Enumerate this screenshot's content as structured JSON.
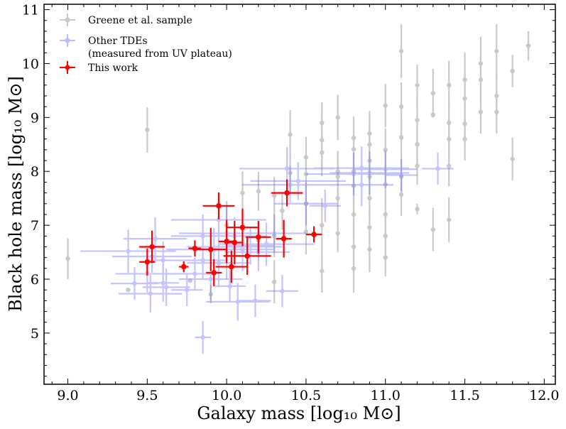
{
  "chart_data": {
    "type": "scatter",
    "title": "",
    "xlabel": "Galaxy mass [log₁₀ M⊙]",
    "ylabel": "Black hole mass [log₁₀ M⊙]",
    "xlim": [
      8.85,
      12.07
    ],
    "ylim": [
      4.05,
      11.1
    ],
    "xticks": [
      9.0,
      9.5,
      10.0,
      10.5,
      11.0,
      11.5,
      12.0
    ],
    "xtick_labels": [
      "9.0",
      "9.5",
      "10.0",
      "10.5",
      "11.0",
      "11.5",
      "12.0"
    ],
    "yticks": [
      5,
      6,
      7,
      8,
      9,
      10,
      11
    ],
    "ytick_labels": [
      "5",
      "6",
      "7",
      "8",
      "9",
      "10",
      "11"
    ],
    "grid": false,
    "legend_position": "top-left",
    "series": [
      {
        "name": "Greene et al. sample",
        "color": "#9e9e9e",
        "points": [
          [
            9.0,
            6.38,
            0,
            0.38
          ],
          [
            9.38,
            5.8,
            0,
            0
          ],
          [
            9.5,
            8.77,
            0,
            0.42
          ],
          [
            9.77,
            5.97,
            0,
            0
          ],
          [
            9.9,
            5.72,
            0,
            0.17
          ],
          [
            10.0,
            6.5,
            0,
            0.5
          ],
          [
            10.0,
            7.0,
            0,
            0.45
          ],
          [
            10.1,
            7.6,
            0,
            0.4
          ],
          [
            10.2,
            7.63,
            0,
            0.36
          ],
          [
            10.2,
            6.72,
            0,
            0.33
          ],
          [
            10.3,
            7.55,
            0,
            0.35
          ],
          [
            10.3,
            6.8,
            0,
            0.4
          ],
          [
            10.3,
            5.95,
            0,
            0.4
          ],
          [
            10.35,
            7.27,
            0,
            0.35
          ],
          [
            10.4,
            8.68,
            0,
            0.46
          ],
          [
            10.4,
            7.97,
            0,
            0.4
          ],
          [
            10.5,
            8.26,
            0,
            0.38
          ],
          [
            10.5,
            7.95,
            0,
            0.36
          ],
          [
            10.5,
            7.4,
            0,
            0.4
          ],
          [
            10.5,
            6.88,
            0,
            0.42
          ],
          [
            10.6,
            8.9,
            0,
            0.38
          ],
          [
            10.6,
            8.58,
            0,
            0.5
          ],
          [
            10.6,
            8.35,
            0,
            0.44
          ],
          [
            10.6,
            7.0,
            0,
            0.5
          ],
          [
            10.6,
            6.15,
            0,
            0.4
          ],
          [
            10.7,
            9.0,
            0,
            0.42
          ],
          [
            10.7,
            8.0,
            0,
            0.38
          ],
          [
            10.7,
            7.9,
            0,
            0.35
          ],
          [
            10.7,
            7.5,
            0,
            0.4
          ],
          [
            10.7,
            6.85,
            0,
            0.35
          ],
          [
            10.8,
            8.62,
            0,
            0.4
          ],
          [
            10.8,
            8.41,
            0,
            0.35
          ],
          [
            10.8,
            8.0,
            0,
            0.38
          ],
          [
            10.8,
            7.73,
            0,
            0.4
          ],
          [
            10.8,
            7.2,
            0,
            0.45
          ],
          [
            10.8,
            6.6,
            0,
            0.45
          ],
          [
            10.8,
            6.2,
            0,
            0.45
          ],
          [
            10.9,
            8.7,
            0,
            0.42
          ],
          [
            10.9,
            8.5,
            0,
            0.4
          ],
          [
            10.9,
            8.2,
            0,
            0.38
          ],
          [
            10.9,
            7.9,
            0,
            0.35
          ],
          [
            10.9,
            7.5,
            0,
            0.4
          ],
          [
            10.9,
            6.96,
            0,
            0.38
          ],
          [
            10.9,
            6.55,
            0,
            0.42
          ],
          [
            11.0,
            9.22,
            0,
            0.4
          ],
          [
            11.0,
            8.4,
            0,
            0.4
          ],
          [
            11.0,
            7.76,
            0,
            0.38
          ],
          [
            11.0,
            7.2,
            0,
            0.4
          ],
          [
            11.0,
            6.8,
            0,
            0.42
          ],
          [
            11.0,
            6.4,
            0,
            0.35
          ],
          [
            11.1,
            10.23,
            0,
            0.5
          ],
          [
            11.1,
            9.2,
            0,
            0.45
          ],
          [
            11.1,
            8.63,
            0,
            0.4
          ],
          [
            11.1,
            7.9,
            0,
            0.35
          ],
          [
            11.1,
            7.57,
            0,
            0.4
          ],
          [
            11.2,
            9.6,
            0,
            0.38
          ],
          [
            11.2,
            8.95,
            0,
            0.45
          ],
          [
            11.2,
            8.5,
            0,
            0.4
          ],
          [
            11.2,
            8.1,
            0,
            0.35
          ],
          [
            11.2,
            7.3,
            0,
            0.1
          ],
          [
            11.3,
            9.45,
            0,
            0.45
          ],
          [
            11.3,
            9.05,
            0,
            0.05
          ],
          [
            11.3,
            6.92,
            0,
            0.4
          ],
          [
            11.4,
            9.6,
            0,
            0.45
          ],
          [
            11.4,
            8.9,
            0,
            0.42
          ],
          [
            11.4,
            8.6,
            0,
            0.4
          ],
          [
            11.4,
            8.1,
            0,
            0.38
          ],
          [
            11.4,
            7.1,
            0,
            0.42
          ],
          [
            11.5,
            9.7,
            0,
            0.5
          ],
          [
            11.5,
            9.35,
            0,
            0.45
          ],
          [
            11.5,
            8.88,
            0,
            0.4
          ],
          [
            11.5,
            8.6,
            0,
            0.4
          ],
          [
            11.6,
            10.0,
            0,
            0.5
          ],
          [
            11.6,
            9.7,
            0,
            0.4
          ],
          [
            11.6,
            9.1,
            0,
            0.4
          ],
          [
            11.7,
            10.23,
            0,
            0.5
          ],
          [
            11.7,
            9.4,
            0,
            0.38
          ],
          [
            11.7,
            9.1,
            0,
            0.4
          ],
          [
            11.8,
            9.86,
            0,
            0.3
          ],
          [
            11.8,
            8.23,
            0,
            0.4
          ],
          [
            11.9,
            10.33,
            0,
            0.27
          ]
        ]
      },
      {
        "name": "Other TDEs\n(measured from UV plateau)",
        "color": "#6b6bff",
        "points": [
          [
            9.38,
            6.52,
            0.3,
            0.4
          ],
          [
            9.42,
            5.92,
            0.15,
            0.3
          ],
          [
            9.53,
            6.42,
            0.25,
            0.3
          ],
          [
            9.5,
            6.1,
            0.2,
            0.35
          ],
          [
            9.52,
            5.73,
            0.2,
            0.35
          ],
          [
            9.55,
            6.75,
            0.2,
            0.4
          ],
          [
            9.6,
            6.35,
            0.1,
            0.35
          ],
          [
            9.6,
            5.93,
            0.1,
            0.35
          ],
          [
            9.62,
            5.85,
            0.15,
            0.35
          ],
          [
            9.75,
            5.8,
            0.1,
            0.3
          ],
          [
            9.8,
            6.1,
            0.1,
            0.3
          ],
          [
            9.85,
            6.8,
            0.2,
            0.4
          ],
          [
            9.85,
            6.35,
            0.15,
            0.35
          ],
          [
            9.85,
            4.92,
            0.05,
            0.3
          ],
          [
            9.9,
            6.0,
            0.2,
            0.4
          ],
          [
            9.92,
            6.55,
            0.3,
            0.4
          ],
          [
            9.95,
            6.3,
            0.2,
            0.45
          ],
          [
            9.95,
            7.1,
            0.3,
            0.4
          ],
          [
            10.0,
            6.85,
            0.3,
            0.5
          ],
          [
            10.05,
            6.6,
            0.3,
            0.4
          ],
          [
            10.02,
            5.87,
            0.1,
            0.3
          ],
          [
            10.07,
            5.58,
            0.2,
            0.35
          ],
          [
            10.1,
            6.55,
            0.2,
            0.4
          ],
          [
            10.15,
            6.62,
            0.15,
            0.35
          ],
          [
            10.2,
            6.5,
            0.2,
            0.35
          ],
          [
            10.25,
            6.65,
            0.3,
            0.4
          ],
          [
            10.3,
            6.85,
            0.2,
            0.35
          ],
          [
            10.35,
            5.78,
            0.1,
            0.3
          ],
          [
            10.4,
            7.75,
            0.3,
            0.35
          ],
          [
            10.38,
            8.05,
            0.3,
            0.4
          ],
          [
            10.45,
            7.82,
            0.3,
            0.35
          ],
          [
            10.5,
            7.4,
            0.2,
            0.4
          ],
          [
            10.62,
            7.36,
            0.1,
            0.3
          ],
          [
            10.8,
            7.95,
            0.3,
            0.4
          ],
          [
            10.85,
            8.06,
            0.3,
            0.4
          ],
          [
            10.85,
            7.75,
            0.2,
            0.4
          ],
          [
            10.9,
            7.97,
            0.25,
            0.4
          ],
          [
            11.0,
            8.04,
            0.2,
            0.35
          ],
          [
            11.1,
            7.93,
            0.1,
            0.3
          ],
          [
            11.33,
            8.05,
            0.1,
            0.3
          ],
          [
            10.18,
            5.6,
            0.1,
            0.3
          ],
          [
            10.05,
            6.8,
            0.2,
            0.35
          ]
        ]
      },
      {
        "name": "This work",
        "color": "#ff0000",
        "points": [
          [
            9.5,
            6.32,
            0.05,
            0.25
          ],
          [
            9.53,
            6.6,
            0.08,
            0.3
          ],
          [
            9.73,
            6.23,
            0.03,
            0.1
          ],
          [
            9.8,
            6.57,
            0.04,
            0.15
          ],
          [
            9.9,
            6.55,
            0.1,
            0.4
          ],
          [
            9.92,
            6.12,
            0.05,
            0.25
          ],
          [
            9.95,
            7.36,
            0.1,
            0.25
          ],
          [
            10.0,
            6.7,
            0.05,
            0.4
          ],
          [
            10.03,
            6.23,
            0.1,
            0.3
          ],
          [
            10.05,
            6.68,
            0.05,
            0.4
          ],
          [
            10.1,
            6.96,
            0.1,
            0.35
          ],
          [
            10.13,
            6.43,
            0.15,
            0.35
          ],
          [
            10.2,
            6.78,
            0.08,
            0.3
          ],
          [
            10.36,
            6.75,
            0.05,
            0.35
          ],
          [
            10.38,
            7.6,
            0.1,
            0.25
          ],
          [
            10.55,
            6.83,
            0.05,
            0.15
          ]
        ]
      }
    ]
  }
}
